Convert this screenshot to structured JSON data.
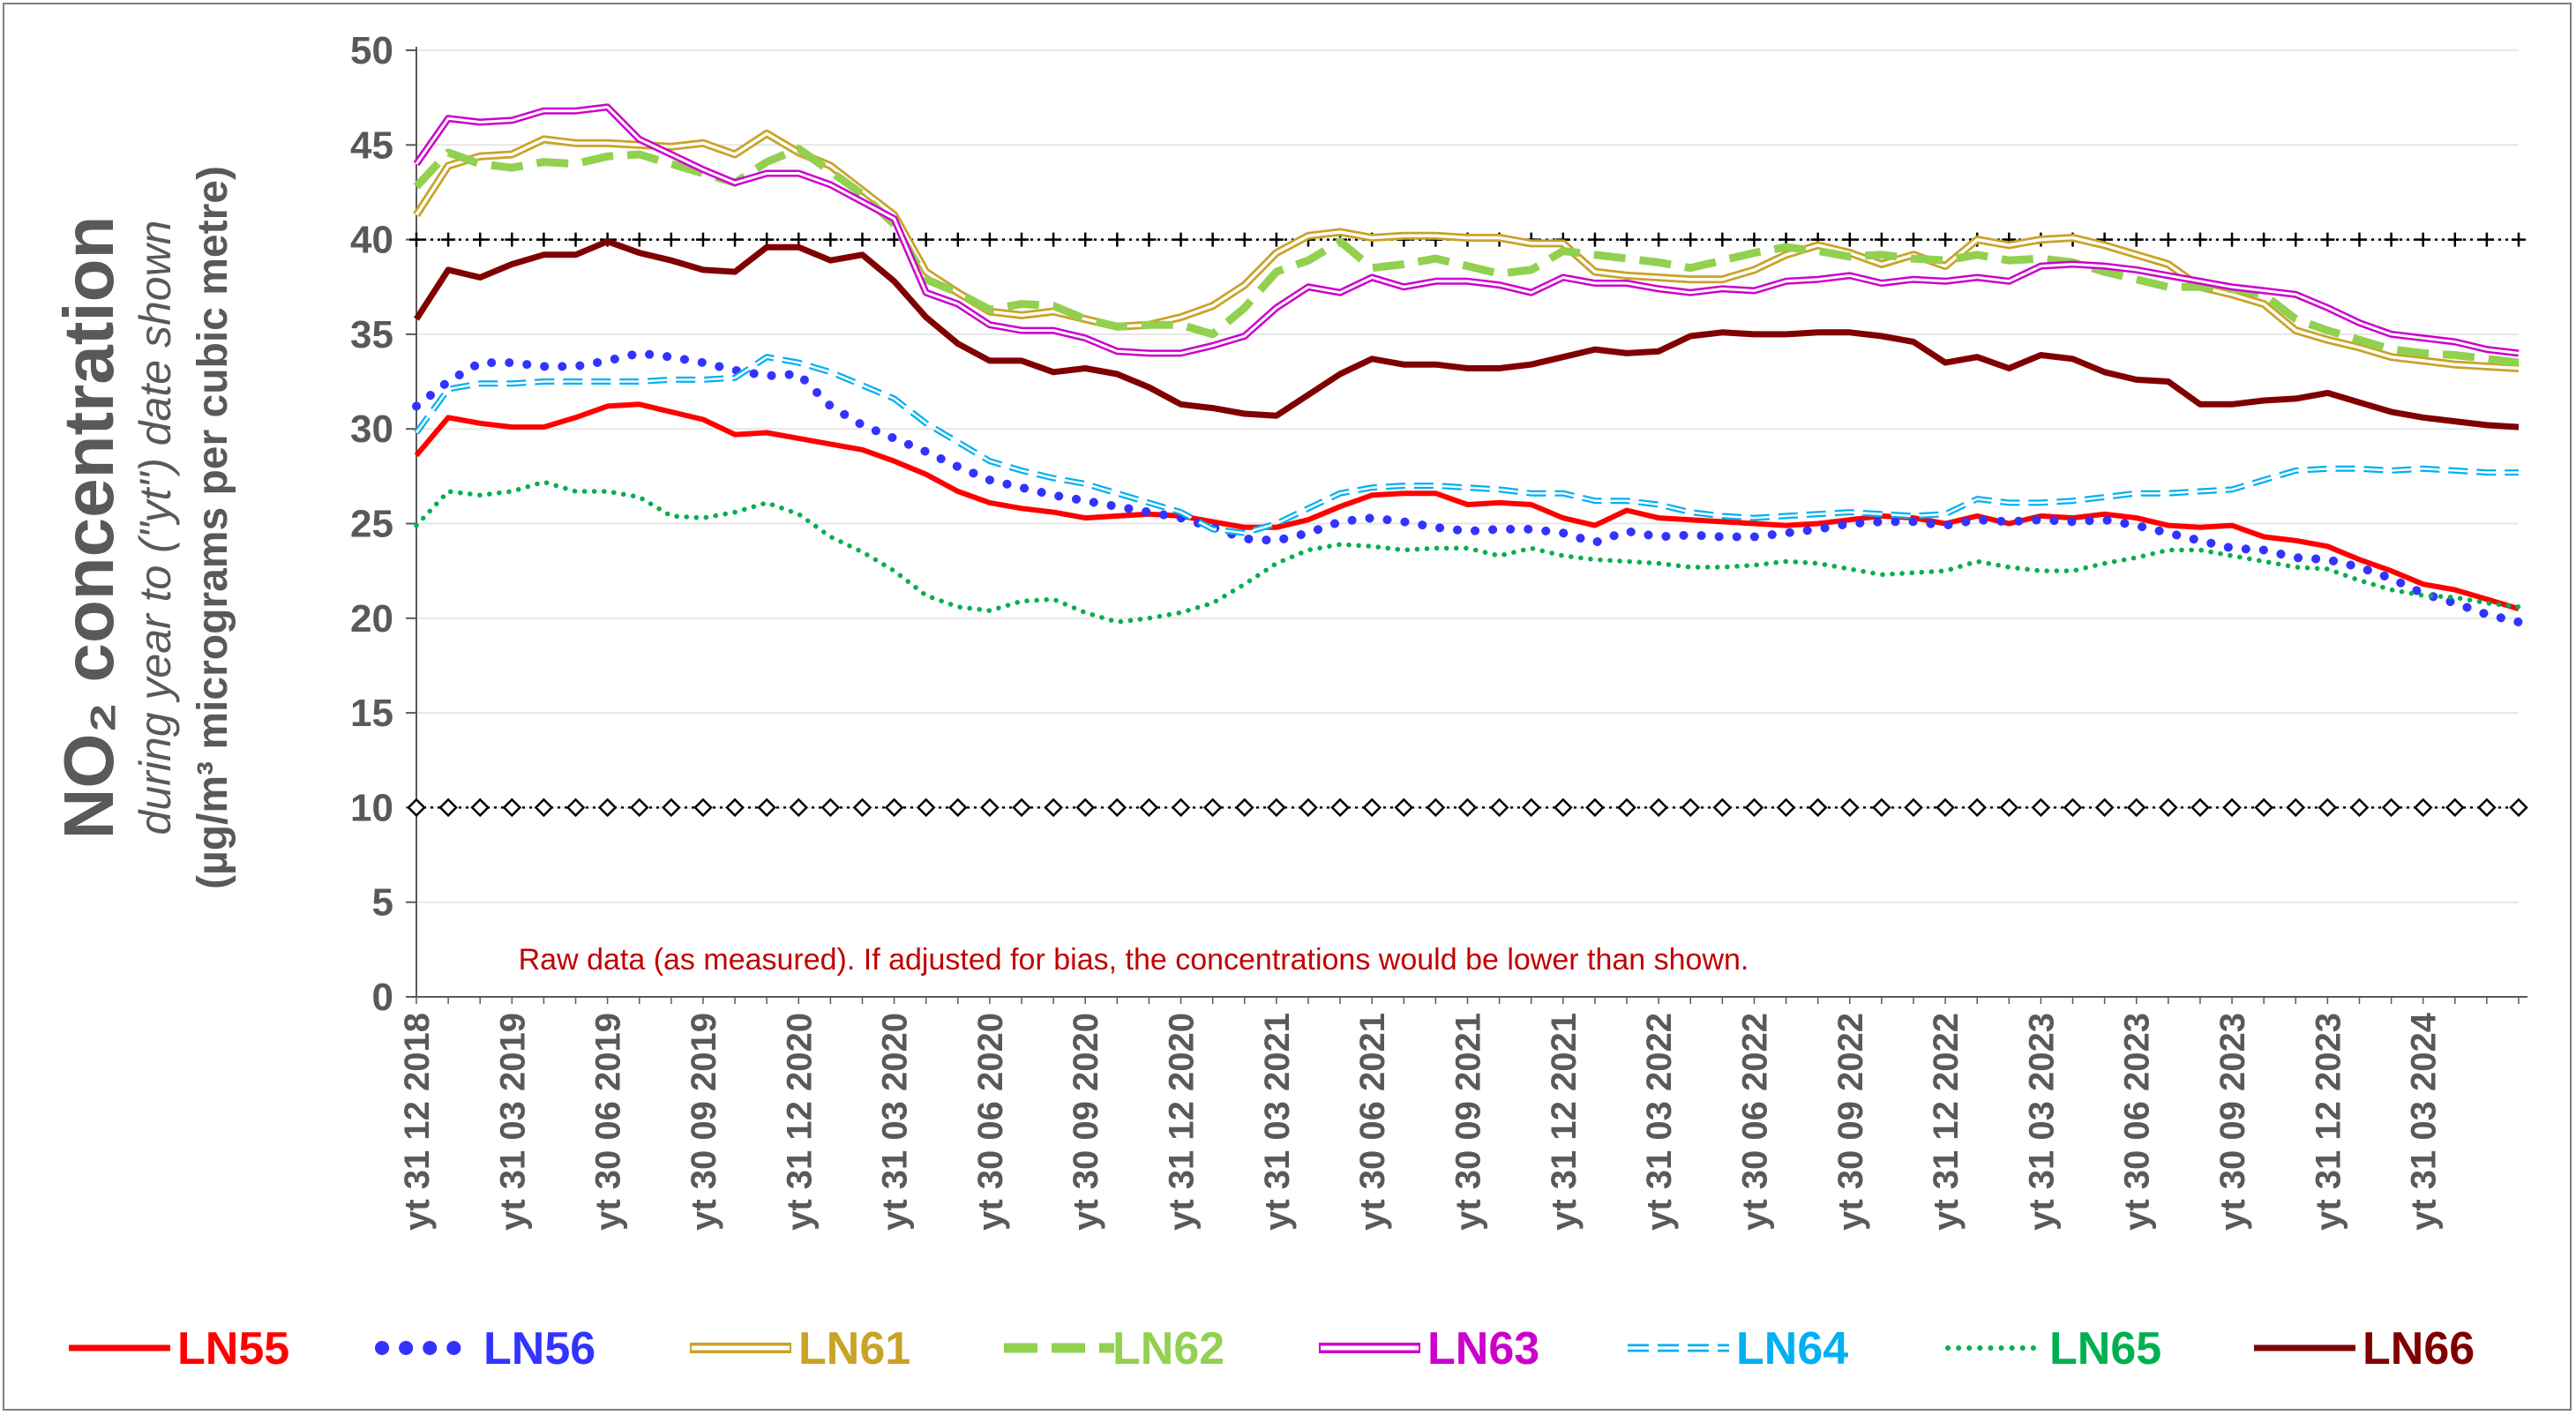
{
  "chart_data": {
    "type": "line",
    "title": "NO₂ concentration",
    "subtitle": "during year to (\"yt\") date shown",
    "ylabel": "(µg/m³ micrograms per cubic metre)",
    "note": "Raw data (as measured).  If adjusted for bias, the concentrations would be lower than shown.",
    "ylim": [
      0,
      50
    ],
    "yticks": [
      0,
      5,
      10,
      15,
      20,
      25,
      30,
      35,
      40,
      45,
      50
    ],
    "x_tick_labels": [
      "yt 31 12 2018",
      "yt 31 03 2019",
      "yt 30 06 2019",
      "yt 30 09 2019",
      "yt 31 12 2020",
      "yt 31 03 2020",
      "yt 30 06 2020",
      "yt 30 09 2020",
      "yt 31 12 2020",
      "yt 31 03 2021",
      "yt 30 06 2021",
      "yt 30 09 2021",
      "yt 31 12 2021",
      "yt 31 03 2022",
      "yt 30 06 2022",
      "yt 30 09 2022",
      "yt 31 12 2022",
      "yt 31 03 2023",
      "yt 30 06 2023",
      "yt 30 09 2023",
      "yt 31 12 2023",
      "yt 31 03 2024"
    ],
    "x_points": 67,
    "grid": "horizontal",
    "reference_lines": [
      {
        "value": 40,
        "marker": "plus",
        "color": "#000000"
      },
      {
        "value": 10,
        "marker": "diamond",
        "color": "#000000"
      }
    ],
    "legend_position": "bottom",
    "series": [
      {
        "name": "LN55",
        "color": "#ff0000",
        "style": "solid",
        "values": [
          28.6,
          30.6,
          30.3,
          30.1,
          30.1,
          30.6,
          31.2,
          31.3,
          30.9,
          30.5,
          29.7,
          29.8,
          29.5,
          29.2,
          28.9,
          28.3,
          27.6,
          26.7,
          26.1,
          25.8,
          25.6,
          25.3,
          25.4,
          25.5,
          25.4,
          25.1,
          24.8,
          24.8,
          25.2,
          25.9,
          26.5,
          26.6,
          26.6,
          26.0,
          26.1,
          26.0,
          25.3,
          24.9,
          25.7,
          25.3,
          25.2,
          25.1,
          25.0,
          24.9,
          25.0,
          25.2,
          25.4,
          25.3,
          25.0,
          25.4,
          25.0,
          25.4,
          25.3,
          25.5,
          25.3,
          24.9,
          24.8,
          24.9,
          24.3,
          24.1,
          23.8,
          23.1,
          22.5,
          21.8,
          21.5,
          21.0,
          20.5
        ]
      },
      {
        "name": "LN56",
        "color": "#3333ff",
        "style": "dotted",
        "values": [
          31.2,
          32.5,
          33.5,
          33.5,
          33.3,
          33.3,
          33.6,
          34.0,
          33.8,
          33.5,
          33.1,
          32.8,
          32.9,
          31.2,
          30.2,
          29.5,
          28.8,
          28.0,
          27.3,
          26.9,
          26.5,
          26.2,
          25.9,
          25.6,
          25.3,
          24.8,
          24.2,
          24.1,
          24.5,
          25.1,
          25.3,
          25.1,
          24.8,
          24.6,
          24.7,
          24.7,
          24.5,
          24.0,
          24.6,
          24.3,
          24.4,
          24.3,
          24.3,
          24.5,
          24.7,
          25.0,
          25.1,
          25.1,
          24.9,
          25.2,
          25.1,
          25.2,
          25.1,
          25.2,
          24.9,
          24.5,
          24.1,
          23.7,
          23.6,
          23.2,
          23.1,
          22.7,
          22.1,
          21.3,
          20.8,
          20.2,
          19.8
        ]
      },
      {
        "name": "LN61",
        "color": "#c9a227",
        "style": "double",
        "values": [
          41.3,
          43.9,
          44.4,
          44.5,
          45.3,
          45.1,
          45.1,
          45.0,
          44.9,
          45.1,
          44.5,
          45.6,
          44.6,
          43.9,
          42.6,
          41.3,
          38.3,
          37.2,
          36.2,
          36.0,
          36.2,
          35.8,
          35.4,
          35.5,
          35.9,
          36.5,
          37.6,
          39.3,
          40.2,
          40.4,
          40.1,
          40.2,
          40.2,
          40.1,
          40.1,
          39.8,
          39.8,
          38.3,
          38.1,
          38.0,
          37.9,
          37.9,
          38.4,
          39.2,
          39.7,
          39.3,
          38.7,
          39.2,
          38.6,
          40.0,
          39.7,
          40.0,
          40.1,
          39.7,
          39.2,
          38.7,
          37.5,
          37.1,
          36.6,
          35.2,
          34.7,
          34.3,
          33.8,
          33.6,
          33.4,
          33.3,
          33.2
        ]
      },
      {
        "name": "LN62",
        "color": "#92d050",
        "style": "dashed",
        "values": [
          42.8,
          44.6,
          44.0,
          43.8,
          44.1,
          44.0,
          44.4,
          44.5,
          44.0,
          43.5,
          43.0,
          44.1,
          44.8,
          43.6,
          42.4,
          40.8,
          37.9,
          37.2,
          36.3,
          36.6,
          36.5,
          35.8,
          35.4,
          35.5,
          35.5,
          35.0,
          36.4,
          38.3,
          38.9,
          39.9,
          38.5,
          38.7,
          39.0,
          38.6,
          38.2,
          38.4,
          39.4,
          39.2,
          39.0,
          38.8,
          38.5,
          38.9,
          39.3,
          39.6,
          39.4,
          39.1,
          39.2,
          39.0,
          38.9,
          39.2,
          38.9,
          39.0,
          38.8,
          38.3,
          37.9,
          37.5,
          37.5,
          37.4,
          37.1,
          35.8,
          35.2,
          34.7,
          34.2,
          34.0,
          33.9,
          33.7,
          33.5
        ]
      },
      {
        "name": "LN63",
        "color": "#cc00cc",
        "style": "double",
        "values": [
          44.0,
          46.4,
          46.2,
          46.3,
          46.8,
          46.8,
          47.0,
          45.3,
          44.5,
          43.7,
          43.0,
          43.5,
          43.5,
          42.9,
          42.0,
          41.1,
          37.2,
          36.6,
          35.5,
          35.2,
          35.2,
          34.8,
          34.1,
          34.0,
          34.0,
          34.4,
          34.9,
          36.4,
          37.5,
          37.2,
          38.0,
          37.5,
          37.8,
          37.8,
          37.6,
          37.2,
          38.0,
          37.7,
          37.7,
          37.4,
          37.2,
          37.4,
          37.3,
          37.8,
          37.9,
          38.1,
          37.7,
          37.9,
          37.8,
          38.0,
          37.8,
          38.6,
          38.7,
          38.6,
          38.4,
          38.1,
          37.8,
          37.5,
          37.3,
          37.1,
          36.4,
          35.6,
          35.0,
          34.8,
          34.6,
          34.2,
          34.0
        ]
      },
      {
        "name": "LN64",
        "color": "#00b0f0",
        "style": "dashed-double",
        "values": [
          29.8,
          32.1,
          32.4,
          32.4,
          32.5,
          32.5,
          32.5,
          32.5,
          32.6,
          32.6,
          32.7,
          33.8,
          33.5,
          33.0,
          32.3,
          31.6,
          30.3,
          29.3,
          28.3,
          27.8,
          27.4,
          27.1,
          26.6,
          26.1,
          25.6,
          24.7,
          24.5,
          25.0,
          25.8,
          26.6,
          26.9,
          27.0,
          27.0,
          26.9,
          26.8,
          26.6,
          26.6,
          26.2,
          26.2,
          26.0,
          25.6,
          25.4,
          25.3,
          25.4,
          25.5,
          25.6,
          25.5,
          25.4,
          25.5,
          26.3,
          26.1,
          26.1,
          26.2,
          26.4,
          26.6,
          26.6,
          26.7,
          26.8,
          27.3,
          27.8,
          27.9,
          27.9,
          27.8,
          27.9,
          27.8,
          27.7,
          27.7
        ]
      },
      {
        "name": "LN65",
        "color": "#00b050",
        "style": "dotted",
        "values": [
          24.9,
          26.7,
          26.5,
          26.7,
          27.2,
          26.7,
          26.7,
          26.4,
          25.4,
          25.3,
          25.6,
          26.1,
          25.5,
          24.3,
          23.5,
          22.5,
          21.2,
          20.6,
          20.4,
          20.9,
          21.0,
          20.3,
          19.8,
          20.0,
          20.3,
          20.8,
          21.8,
          22.9,
          23.6,
          23.9,
          23.8,
          23.6,
          23.7,
          23.7,
          23.3,
          23.7,
          23.3,
          23.1,
          23.0,
          22.9,
          22.7,
          22.7,
          22.8,
          23.0,
          22.9,
          22.6,
          22.3,
          22.4,
          22.5,
          23.0,
          22.7,
          22.5,
          22.5,
          22.9,
          23.2,
          23.6,
          23.6,
          23.3,
          23.0,
          22.7,
          22.6,
          22.0,
          21.5,
          21.2,
          21.1,
          20.8,
          20.6
        ]
      },
      {
        "name": "LN66",
        "color": "#800000",
        "style": "solid",
        "values": [
          35.8,
          38.4,
          38.0,
          38.7,
          39.2,
          39.2,
          39.9,
          39.3,
          38.9,
          38.4,
          38.3,
          39.6,
          39.6,
          38.9,
          39.2,
          37.8,
          35.9,
          34.5,
          33.6,
          33.6,
          33.0,
          33.2,
          32.9,
          32.2,
          31.3,
          31.1,
          30.8,
          30.7,
          31.8,
          32.9,
          33.7,
          33.4,
          33.4,
          33.2,
          33.2,
          33.4,
          33.8,
          34.2,
          34.0,
          34.1,
          34.9,
          35.1,
          35.0,
          35.0,
          35.1,
          35.1,
          34.9,
          34.6,
          33.5,
          33.8,
          33.2,
          33.9,
          33.7,
          33.0,
          32.6,
          32.5,
          31.3,
          31.3,
          31.5,
          31.6,
          31.9,
          31.4,
          30.9,
          30.6,
          30.4,
          30.2,
          30.1
        ]
      }
    ]
  }
}
